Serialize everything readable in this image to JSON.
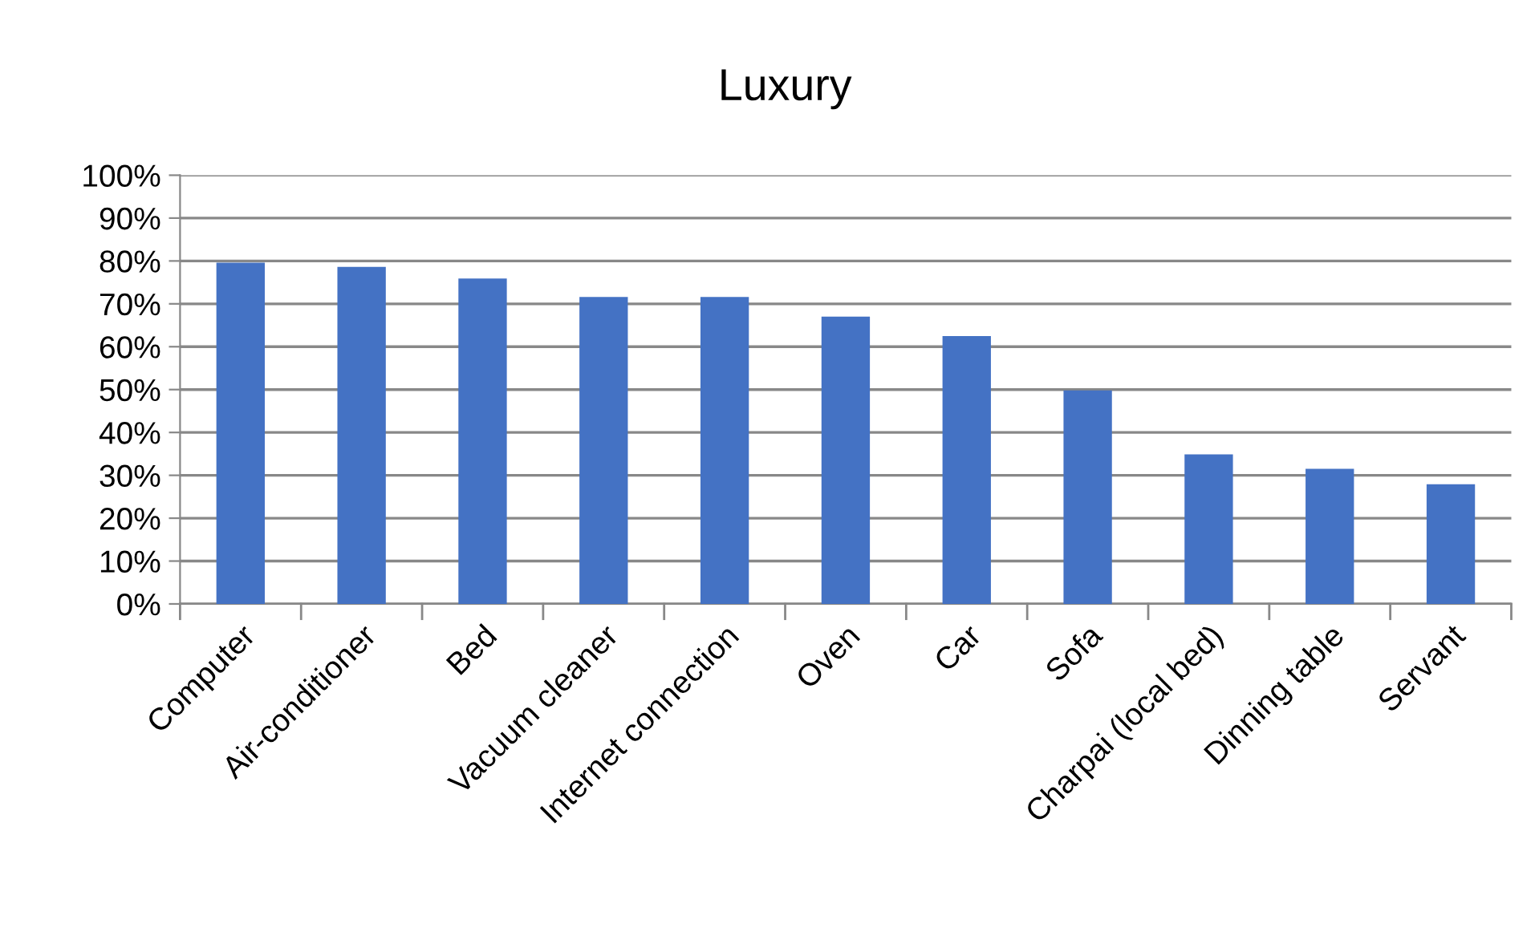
{
  "chart_data": {
    "type": "bar",
    "title": "Luxury",
    "categories": [
      "Computer",
      "Air-conditioner",
      "Bed",
      "Vacuum cleaner",
      "Internet connection",
      "Oven",
      "Car",
      "Sofa",
      "Charpai (local bed)",
      "Dinning table",
      "Servant"
    ],
    "values": [
      79.6,
      78.6,
      75.9,
      71.6,
      71.6,
      67,
      62.5,
      49.8,
      34.9,
      31.5,
      27.9
    ],
    "color": "#4472c4",
    "ylim": [
      0,
      100
    ],
    "yticks": [
      {
        "value": 0,
        "label": "0%"
      },
      {
        "value": 10,
        "label": "10%"
      },
      {
        "value": 20,
        "label": "20%"
      },
      {
        "value": 30,
        "label": "30%"
      },
      {
        "value": 40,
        "label": "40%"
      },
      {
        "value": 50,
        "label": "50%"
      },
      {
        "value": 60,
        "label": "60%"
      },
      {
        "value": 70,
        "label": "70%"
      },
      {
        "value": 80,
        "label": "80%"
      },
      {
        "value": 90,
        "label": "90%"
      },
      {
        "value": 100,
        "label": "100%"
      }
    ],
    "grid": "y"
  }
}
